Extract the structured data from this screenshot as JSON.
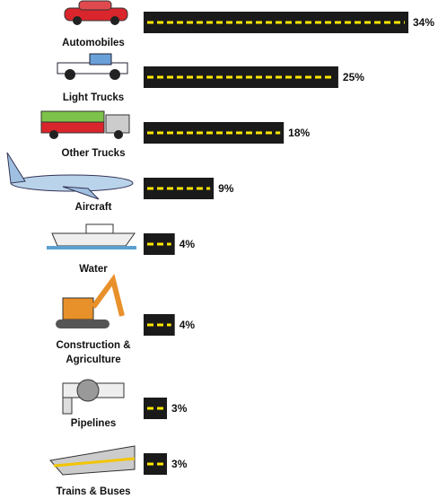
{
  "chart_data": {
    "type": "bar",
    "orientation": "horizontal",
    "categories": [
      "Automobiles",
      "Light Trucks",
      "Other Trucks",
      "Aircraft",
      "Water",
      "Construction & Agriculture",
      "Pipelines",
      "Trains & Buses"
    ],
    "values": [
      34,
      25,
      18,
      9,
      4,
      4,
      3,
      3
    ],
    "value_labels": [
      "34%",
      "25%",
      "18%",
      "9%",
      "4%",
      "4%",
      "3%",
      "3%"
    ],
    "color": "#1a1a1a",
    "dash_color": "#ffe600"
  }
}
